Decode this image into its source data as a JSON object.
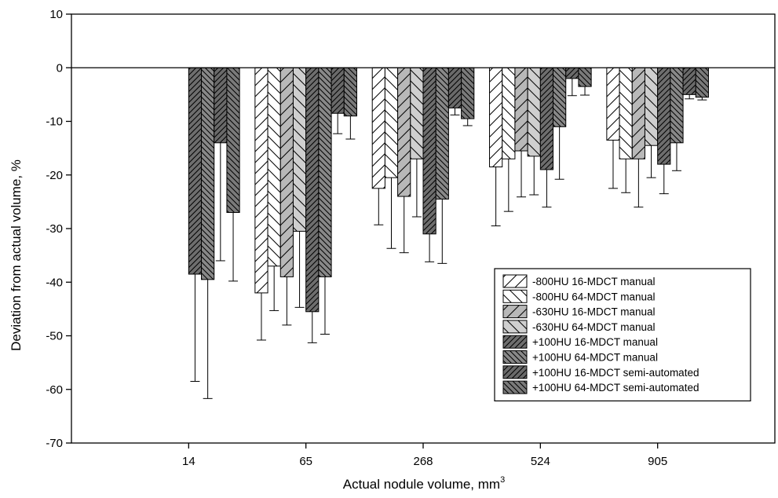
{
  "chart_data": {
    "type": "bar",
    "xlabel": "Actual nodule volume, mm",
    "xlabel_superscript": "3",
    "ylabel": "Deviation from actual volume, %",
    "ylim": [
      -70,
      10
    ],
    "yticks": [
      10,
      0,
      -10,
      -20,
      -30,
      -40,
      -50,
      -60,
      -70
    ],
    "categories": [
      "14",
      "65",
      "268",
      "524",
      "905"
    ],
    "legend_position": "lower-right",
    "grid": false,
    "series": [
      {
        "name": "-800HU 16-MDCT manual",
        "pattern": "sparse-diag-up",
        "fill": "#ffffff",
        "values": [
          null,
          -42,
          -22.5,
          -18.5,
          -13.5
        ],
        "errors": [
          null,
          8.8,
          6.8,
          11,
          9
        ]
      },
      {
        "name": "-800HU 64-MDCT manual",
        "pattern": "sparse-diag-down",
        "fill": "#ffffff",
        "values": [
          null,
          -37,
          -20.5,
          -17,
          -17
        ],
        "errors": [
          null,
          8.3,
          13.2,
          9.8,
          6.3
        ]
      },
      {
        "name": "-630HU 16-MDCT manual",
        "pattern": "sparse-diag-up",
        "fill": "#b8b8b8",
        "values": [
          null,
          -39,
          -24,
          -15.5,
          -17
        ],
        "errors": [
          null,
          9,
          10.5,
          8.6,
          9
        ]
      },
      {
        "name": "-630HU 64-MDCT manual",
        "pattern": "sparse-diag-down",
        "fill": "#cfcfcf",
        "values": [
          null,
          -30.5,
          -17,
          -16.5,
          -14.5
        ],
        "errors": [
          null,
          14.2,
          10.8,
          7.2,
          6
        ]
      },
      {
        "name": "+100HU 16-MDCT manual",
        "pattern": "dense-diag-up",
        "fill": "#6e6e6e",
        "values": [
          -38.5,
          -45.5,
          -31,
          -19,
          -18
        ],
        "errors": [
          20,
          5.8,
          5.2,
          7,
          5.5
        ]
      },
      {
        "name": "+100HU 64-MDCT manual",
        "pattern": "dense-diag-down",
        "fill": "#888888",
        "values": [
          -39.5,
          -39,
          -24.5,
          -11,
          -14
        ],
        "errors": [
          22.2,
          10.7,
          12,
          9.8,
          5.2
        ]
      },
      {
        "name": "+100HU 16-MDCT semi-automated",
        "pattern": "dense-diag-up",
        "fill": "#6a6a6a",
        "values": [
          -14,
          -8.5,
          -7.5,
          -2,
          -5
        ],
        "errors": [
          22,
          3.8,
          1.3,
          3.2,
          0.8
        ]
      },
      {
        "name": "+100HU 64-MDCT semi-automated",
        "pattern": "dense-diag-down",
        "fill": "#7a7a7a",
        "values": [
          -27,
          -9,
          -9.5,
          -3.5,
          -5.5
        ],
        "errors": [
          12.8,
          4.3,
          1.3,
          1.6,
          0.5
        ]
      }
    ]
  }
}
